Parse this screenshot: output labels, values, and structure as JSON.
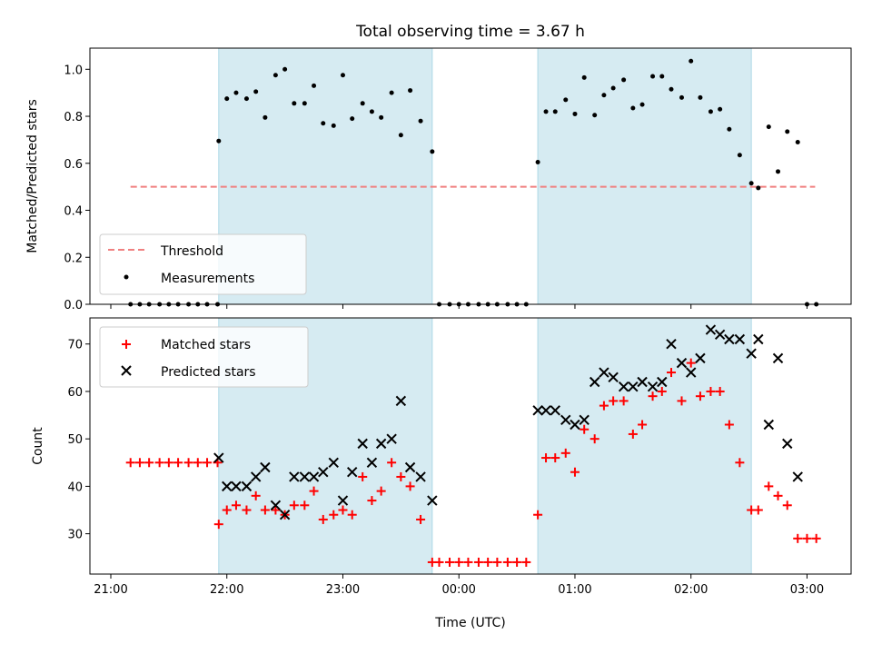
{
  "chart_data": [
    {
      "panel": "top",
      "type": "scatter",
      "title": "Total observing time = 3.67 h",
      "ylabel": "Matched/Predicted stars",
      "xlabel": "",
      "x_unit": "hours since 21:00 UTC",
      "xlim": [
        20.82,
        27.38
      ],
      "ylim": [
        0,
        1.09
      ],
      "yticks": [
        0.0,
        0.2,
        0.4,
        0.6,
        0.8,
        1.0
      ],
      "ytick_labels": [
        "0.0",
        "0.2",
        "0.4",
        "0.6",
        "0.8",
        "1.0"
      ],
      "legend": {
        "placement": "lower-left",
        "entries": [
          "Threshold",
          "Measurements"
        ]
      },
      "shaded_intervals": [
        [
          0.93,
          2.77
        ],
        [
          3.68,
          5.52
        ]
      ],
      "threshold": {
        "name": "Threshold",
        "value": 0.5,
        "x_start": 0.17,
        "x_end": 6.07,
        "color": "#f08080"
      },
      "series": [
        {
          "name": "Measurements",
          "color": "#000000",
          "x": [
            0.17,
            0.25,
            0.33,
            0.42,
            0.5,
            0.58,
            0.67,
            0.75,
            0.83,
            0.92,
            0.93,
            1.0,
            1.08,
            1.17,
            1.25,
            1.33,
            1.42,
            1.5,
            1.58,
            1.67,
            1.75,
            1.83,
            1.92,
            2.0,
            2.08,
            2.17,
            2.25,
            2.33,
            2.42,
            2.5,
            2.58,
            2.67,
            2.77,
            2.83,
            2.92,
            3.0,
            3.08,
            3.17,
            3.25,
            3.33,
            3.42,
            3.5,
            3.58,
            3.68,
            3.75,
            3.83,
            3.92,
            4.0,
            4.08,
            4.17,
            4.25,
            4.33,
            4.42,
            4.5,
            4.58,
            4.67,
            4.75,
            4.83,
            4.92,
            5.0,
            5.08,
            5.17,
            5.25,
            5.33,
            5.42,
            5.52,
            5.58,
            5.67,
            5.75,
            5.83,
            5.92,
            6.0,
            6.08
          ],
          "y": [
            0,
            0,
            0,
            0,
            0,
            0,
            0,
            0,
            0,
            0,
            0.695,
            0.875,
            0.9,
            0.875,
            0.905,
            0.795,
            0.975,
            1.0,
            0.855,
            0.855,
            0.93,
            0.77,
            0.76,
            0.975,
            0.79,
            0.855,
            0.82,
            0.795,
            0.9,
            0.72,
            0.91,
            0.78,
            0.65,
            0,
            0,
            0,
            0,
            0,
            0,
            0,
            0,
            0,
            0,
            0.605,
            0.82,
            0.82,
            0.87,
            0.81,
            0.965,
            0.805,
            0.89,
            0.92,
            0.955,
            0.835,
            0.85,
            0.97,
            0.97,
            0.915,
            0.88,
            1.035,
            0.88,
            0.82,
            0.83,
            0.745,
            0.635,
            0.515,
            0.495,
            0.755,
            0.565,
            0.735,
            0.69,
            0,
            0
          ]
        }
      ]
    },
    {
      "panel": "bottom",
      "type": "scatter",
      "title": "",
      "ylabel": "Count",
      "xlabel": "Time (UTC)",
      "x_unit": "hours since 21:00 UTC",
      "xlim": [
        20.82,
        27.38
      ],
      "ylim": [
        21.5,
        75.5
      ],
      "yticks": [
        30,
        40,
        50,
        60,
        70
      ],
      "ytick_labels": [
        "30",
        "40",
        "50",
        "60",
        "70"
      ],
      "xtick_values": [
        21,
        22,
        23,
        24,
        25,
        26,
        27
      ],
      "xtick_labels": [
        "21:00",
        "22:00",
        "23:00",
        "00:00",
        "01:00",
        "02:00",
        "03:00"
      ],
      "legend": {
        "placement": "top-left",
        "entries": [
          "Matched stars",
          "Predicted stars"
        ]
      },
      "shaded_intervals": [
        [
          0.93,
          2.77
        ],
        [
          3.68,
          5.52
        ]
      ],
      "series": [
        {
          "name": "Matched stars",
          "color": "#ff0000",
          "marker": "+",
          "x": [
            0.17,
            0.25,
            0.33,
            0.42,
            0.5,
            0.58,
            0.67,
            0.75,
            0.83,
            0.92,
            0.93,
            1.0,
            1.08,
            1.17,
            1.25,
            1.33,
            1.42,
            1.5,
            1.58,
            1.67,
            1.75,
            1.83,
            1.92,
            2.0,
            2.08,
            2.17,
            2.25,
            2.33,
            2.42,
            2.5,
            2.58,
            2.67,
            2.77,
            2.83,
            2.92,
            3.0,
            3.08,
            3.17,
            3.25,
            3.33,
            3.42,
            3.5,
            3.58,
            3.68,
            3.75,
            3.83,
            3.92,
            4.0,
            4.08,
            4.17,
            4.25,
            4.33,
            4.42,
            4.5,
            4.58,
            4.67,
            4.75,
            4.83,
            4.92,
            5.0,
            5.08,
            5.17,
            5.25,
            5.33,
            5.42,
            5.52,
            5.58,
            5.67,
            5.75,
            5.83,
            5.92,
            6.0,
            6.08
          ],
          "y": [
            45,
            45,
            45,
            45,
            45,
            45,
            45,
            45,
            45,
            45,
            32,
            35,
            36,
            35,
            38,
            35,
            35,
            34,
            36,
            36,
            39,
            33,
            34,
            35,
            34,
            42,
            37,
            39,
            45,
            42,
            40,
            33,
            24,
            24,
            24,
            24,
            24,
            24,
            24,
            24,
            24,
            24,
            24,
            34,
            46,
            46,
            47,
            43,
            52,
            50,
            57,
            58,
            58,
            51,
            53,
            59,
            60,
            64,
            58,
            66,
            59,
            60,
            60,
            53,
            45,
            35,
            35,
            40,
            38,
            36,
            29,
            29,
            29
          ]
        },
        {
          "name": "Predicted stars",
          "color": "#000000",
          "marker": "x",
          "x": [
            0.93,
            1.0,
            1.08,
            1.17,
            1.25,
            1.33,
            1.42,
            1.5,
            1.58,
            1.67,
            1.75,
            1.83,
            1.92,
            2.0,
            2.08,
            2.17,
            2.25,
            2.33,
            2.42,
            2.5,
            2.58,
            2.67,
            2.77,
            3.68,
            3.75,
            3.83,
            3.92,
            4.0,
            4.08,
            4.17,
            4.25,
            4.33,
            4.42,
            4.5,
            4.58,
            4.67,
            4.75,
            4.83,
            4.92,
            5.0,
            5.08,
            5.17,
            5.25,
            5.33,
            5.42,
            5.52,
            5.58,
            5.67,
            5.75,
            5.83,
            5.92
          ],
          "y": [
            46,
            40,
            40,
            40,
            42,
            44,
            36,
            34,
            42,
            42,
            42,
            43,
            45,
            37,
            43,
            49,
            45,
            49,
            50,
            58,
            44,
            42,
            37,
            56,
            56,
            56,
            54,
            53,
            54,
            62,
            64,
            63,
            61,
            61,
            62,
            61,
            62,
            70,
            66,
            64,
            67,
            73,
            72,
            71,
            71,
            68,
            71,
            53,
            67,
            49,
            42
          ]
        }
      ]
    }
  ]
}
